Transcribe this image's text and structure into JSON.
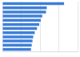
{
  "chart_data": {
    "type": "bar",
    "orientation": "horizontal",
    "categories": [
      null,
      null,
      null,
      null,
      null,
      null,
      null,
      null,
      null,
      null,
      null,
      null
    ],
    "values": [
      82,
      59,
      58,
      53,
      51,
      49,
      46,
      43,
      41,
      40,
      39,
      38
    ],
    "color": "#3e7fd9",
    "xlim": [
      0,
      100
    ],
    "xticks": [
      0,
      25,
      50,
      75,
      100
    ],
    "grid": true,
    "tick_labels": false
  }
}
